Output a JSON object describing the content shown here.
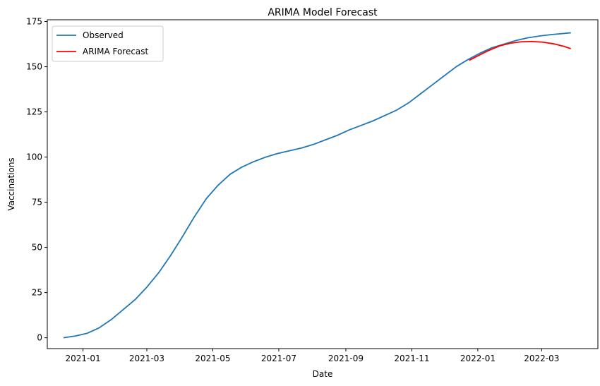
{
  "chart_data": {
    "type": "line",
    "title": "ARIMA Model Forecast",
    "xlabel": "Date",
    "ylabel": "Vaccinations",
    "xlim": [
      "2020-11-29",
      "2022-04-22"
    ],
    "ylim": [
      -6,
      176
    ],
    "x_ticks": [
      "2021-01",
      "2021-03",
      "2021-05",
      "2021-07",
      "2021-09",
      "2021-11",
      "2022-01",
      "2022-03"
    ],
    "y_ticks": [
      0,
      25,
      50,
      75,
      100,
      125,
      150,
      175
    ],
    "grid": false,
    "legend": "top-left",
    "series": [
      {
        "name": "Observed",
        "color": "#1f77b4",
        "points": [
          [
            "2020-12-14",
            0.0
          ],
          [
            "2020-12-25",
            1.0
          ],
          [
            "2021-01-05",
            2.5
          ],
          [
            "2021-01-16",
            5.5
          ],
          [
            "2021-01-27",
            10.0
          ],
          [
            "2021-02-07",
            15.5
          ],
          [
            "2021-02-18",
            21.0
          ],
          [
            "2021-03-01",
            28.0
          ],
          [
            "2021-03-12",
            36.0
          ],
          [
            "2021-03-23",
            45.5
          ],
          [
            "2021-04-03",
            56.0
          ],
          [
            "2021-04-14",
            67.0
          ],
          [
            "2021-04-25",
            77.0
          ],
          [
            "2021-05-06",
            84.5
          ],
          [
            "2021-05-17",
            90.5
          ],
          [
            "2021-05-28",
            94.5
          ],
          [
            "2021-06-08",
            97.5
          ],
          [
            "2021-06-19",
            100.0
          ],
          [
            "2021-06-30",
            102.0
          ],
          [
            "2021-07-11",
            103.5
          ],
          [
            "2021-07-22",
            105.0
          ],
          [
            "2021-08-02",
            107.0
          ],
          [
            "2021-08-13",
            109.5
          ],
          [
            "2021-08-24",
            112.0
          ],
          [
            "2021-09-04",
            115.0
          ],
          [
            "2021-09-15",
            117.5
          ],
          [
            "2021-09-26",
            120.0
          ],
          [
            "2021-10-07",
            123.0
          ],
          [
            "2021-10-18",
            126.0
          ],
          [
            "2021-10-29",
            130.0
          ],
          [
            "2021-11-09",
            135.0
          ],
          [
            "2021-11-20",
            140.0
          ],
          [
            "2021-12-01",
            145.0
          ],
          [
            "2021-12-12",
            150.0
          ],
          [
            "2021-12-23",
            154.0
          ],
          [
            "2022-01-03",
            157.5
          ],
          [
            "2022-01-14",
            160.5
          ],
          [
            "2022-01-25",
            162.5
          ],
          [
            "2022-02-05",
            164.5
          ],
          [
            "2022-02-16",
            166.0
          ],
          [
            "2022-02-27",
            167.0
          ],
          [
            "2022-03-10",
            167.8
          ],
          [
            "2022-03-21",
            168.4
          ],
          [
            "2022-03-28",
            168.8
          ]
        ]
      },
      {
        "name": "ARIMA Forecast",
        "color": "#ff0000",
        "points": [
          [
            "2021-12-24",
            153.5
          ],
          [
            "2022-01-01",
            156.0
          ],
          [
            "2022-01-11",
            159.0
          ],
          [
            "2022-01-21",
            161.5
          ],
          [
            "2022-01-31",
            163.0
          ],
          [
            "2022-02-10",
            163.8
          ],
          [
            "2022-02-20",
            164.0
          ],
          [
            "2022-03-02",
            163.6
          ],
          [
            "2022-03-12",
            162.7
          ],
          [
            "2022-03-22",
            161.2
          ],
          [
            "2022-03-28",
            160.0
          ]
        ]
      }
    ]
  }
}
